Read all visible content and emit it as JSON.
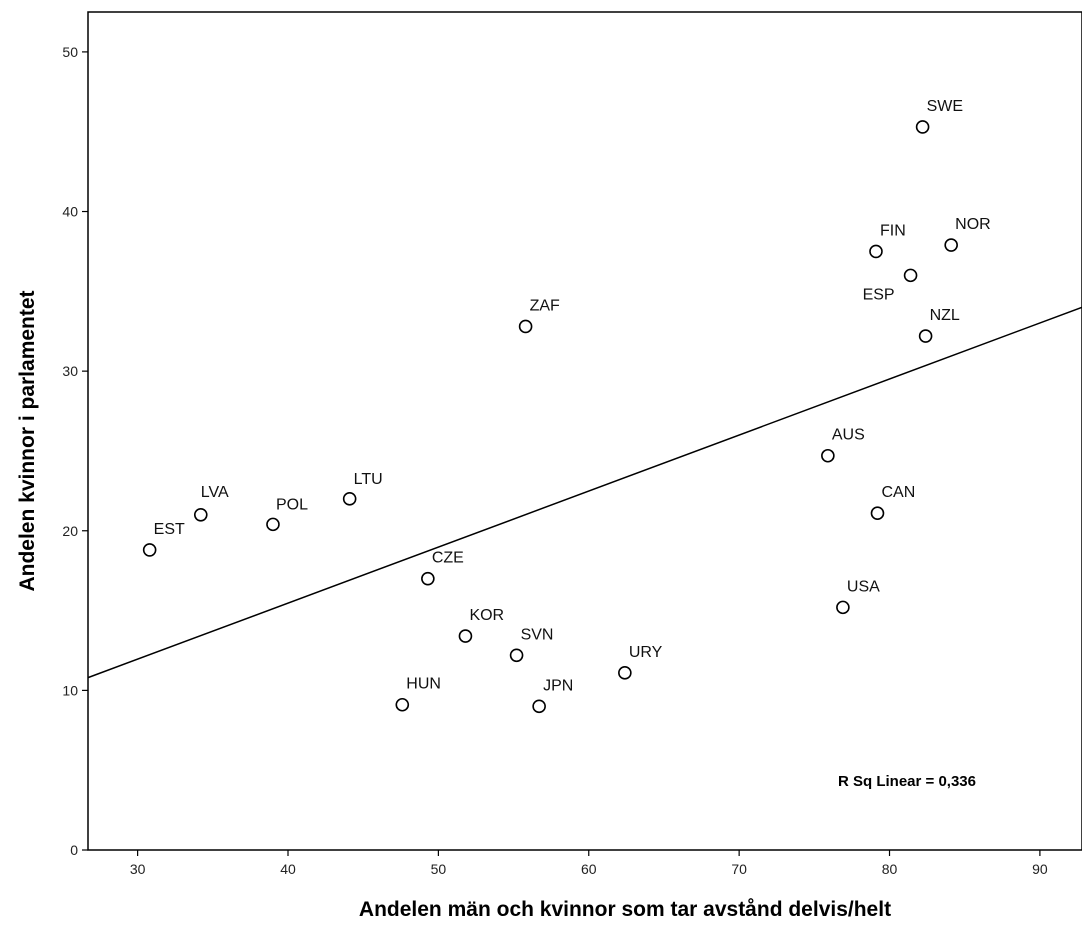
{
  "chart_data": {
    "type": "scatter",
    "title": "",
    "xlabel": "Andelen män och kvinnor som tar avstånd delvis/helt",
    "ylabel": "Andelen kvinnor i parlamentet",
    "xlim": [
      26.7,
      92.8
    ],
    "ylim": [
      0,
      52.5
    ],
    "xticks": [
      30,
      40,
      50,
      60,
      70,
      80,
      90
    ],
    "yticks": [
      0,
      10,
      20,
      30,
      40,
      50
    ],
    "grid": false,
    "legend": "none",
    "marker": "hollow-circle",
    "points": [
      {
        "label": "SWE",
        "x": 82.2,
        "y": 45.3
      },
      {
        "label": "NOR",
        "x": 84.1,
        "y": 37.9
      },
      {
        "label": "FIN",
        "x": 79.1,
        "y": 37.5
      },
      {
        "label": "ESP",
        "x": 81.4,
        "y": 36.0
      },
      {
        "label": "NZL",
        "x": 82.4,
        "y": 32.2
      },
      {
        "label": "ZAF",
        "x": 55.8,
        "y": 32.8
      },
      {
        "label": "AUS",
        "x": 75.9,
        "y": 24.7
      },
      {
        "label": "CAN",
        "x": 79.2,
        "y": 21.1
      },
      {
        "label": "USA",
        "x": 76.9,
        "y": 15.2
      },
      {
        "label": "LTU",
        "x": 44.1,
        "y": 22.0
      },
      {
        "label": "LVA",
        "x": 34.2,
        "y": 21.0
      },
      {
        "label": "POL",
        "x": 39.0,
        "y": 20.4
      },
      {
        "label": "EST",
        "x": 30.8,
        "y": 18.8
      },
      {
        "label": "CZE",
        "x": 49.3,
        "y": 17.0
      },
      {
        "label": "KOR",
        "x": 51.8,
        "y": 13.4
      },
      {
        "label": "SVN",
        "x": 55.2,
        "y": 12.2
      },
      {
        "label": "URY",
        "x": 62.4,
        "y": 11.1
      },
      {
        "label": "HUN",
        "x": 47.6,
        "y": 9.1
      },
      {
        "label": "JPN",
        "x": 56.7,
        "y": 9.0
      }
    ],
    "fit_line": {
      "type": "linear",
      "x": [
        26.7,
        92.8
      ],
      "y": [
        10.8,
        34.0
      ]
    },
    "annotation": "R Sq Linear = 0,336",
    "colors": {
      "axis": "#000000",
      "marker": "#000000",
      "background": "#ffffff"
    }
  }
}
